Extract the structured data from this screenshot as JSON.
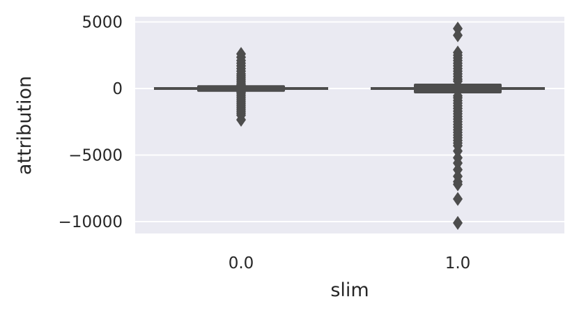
{
  "chart_data": {
    "type": "box",
    "xlabel": "slim",
    "ylabel": "attribution",
    "categories": [
      "0.0",
      "1.0"
    ],
    "ylim": [
      -11000,
      5000
    ],
    "yticks": [
      5000,
      0,
      -5000,
      -10000
    ],
    "ytick_labels": [
      "5000",
      "0",
      "−5000",
      "−10000"
    ],
    "grid": true,
    "colors": {
      "plot_background": "#eaeaf2",
      "grid": "#ffffff",
      "box": "#4d4d4d"
    },
    "boxes": [
      {
        "category": "0.0",
        "q1": -40,
        "q3": 40,
        "median": 0,
        "whisker_low": -110,
        "whisker_high": 110,
        "outliers": [
          2600,
          2350,
          2100,
          1900,
          1700,
          1500,
          1300,
          1100,
          950,
          800,
          650,
          500,
          350,
          250,
          -250,
          -350,
          -500,
          -650,
          -800,
          -950,
          -1100,
          -1250,
          -1400,
          -1550,
          -1700,
          -1850,
          -2000,
          -2350
        ]
      },
      {
        "category": "1.0",
        "q1": -160,
        "q3": 160,
        "median": 0,
        "whisker_low": -420,
        "whisker_high": 420,
        "outliers": [
          4500,
          4000,
          2700,
          2500,
          2300,
          2100,
          1900,
          1700,
          1500,
          1300,
          1100,
          900,
          700,
          550,
          -550,
          -700,
          -900,
          -1100,
          -1300,
          -1500,
          -1700,
          -1900,
          -2100,
          -2300,
          -2500,
          -2700,
          -2900,
          -3100,
          -3300,
          -3500,
          -3700,
          -3900,
          -4100,
          -4300,
          -4700,
          -5200,
          -5600,
          -6100,
          -6600,
          -7000,
          -7200,
          -8300,
          -10100
        ]
      }
    ]
  }
}
